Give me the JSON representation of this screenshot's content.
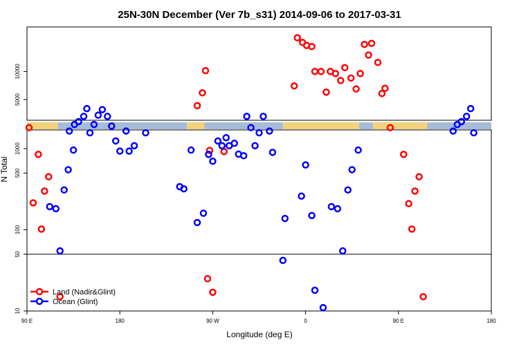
{
  "chart_data": {
    "type": "scatter",
    "title": "25N-30N December (Ver 7b_s31)   2014-09-06 to 2017-03-31",
    "xlabel": "Longitude (deg E)",
    "ylabel": "N Total",
    "x_ticks": [
      {
        "value": 90,
        "label": "90 E"
      },
      {
        "value": 180,
        "label": "180"
      },
      {
        "value": 270,
        "label": "90 W"
      },
      {
        "value": 360,
        "label": "0"
      },
      {
        "value": 450,
        "label": "90 E"
      },
      {
        "value": 540,
        "label": "180"
      }
    ],
    "y_upper_ticks": [
      {
        "value": 10000,
        "label": "10000"
      },
      {
        "value": 5000,
        "label": "5000"
      }
    ],
    "y_lower_ticks": [
      {
        "value": 1000,
        "label": "1000"
      },
      {
        "value": 500,
        "label": "500"
      },
      {
        "value": 100,
        "label": "100"
      },
      {
        "value": 50,
        "label": "50"
      },
      {
        "value": 10,
        "label": "10"
      }
    ],
    "threshold_line": 50,
    "colors": {
      "land": "#ff0000",
      "ocean": "#0000ff",
      "surface_land": "#f2d27a",
      "surface_ocean": "#a7bcd9"
    },
    "surface_strip": [
      {
        "from": 90,
        "to": 120,
        "kind": "land"
      },
      {
        "from": 120,
        "to": 245,
        "kind": "ocean"
      },
      {
        "from": 245,
        "to": 262,
        "kind": "land"
      },
      {
        "from": 262,
        "to": 338,
        "kind": "ocean"
      },
      {
        "from": 338,
        "to": 412,
        "kind": "land"
      },
      {
        "from": 412,
        "to": 425,
        "kind": "ocean"
      },
      {
        "from": 425,
        "to": 478,
        "kind": "land"
      },
      {
        "from": 478,
        "to": 540,
        "kind": "ocean"
      }
    ],
    "series": [
      {
        "name": "Land (Nadir&Glint)",
        "kind": "land",
        "upper": [
          [
            92,
            2500
          ],
          [
            255,
            4300
          ],
          [
            260,
            5900
          ],
          [
            263,
            10200
          ],
          [
            349,
            7000
          ],
          [
            352,
            23000
          ],
          [
            357,
            20500
          ],
          [
            361,
            19000
          ],
          [
            366,
            18500
          ],
          [
            369,
            10000
          ],
          [
            375,
            10000
          ],
          [
            380,
            6000
          ],
          [
            384,
            10000
          ],
          [
            389,
            9500
          ],
          [
            394,
            8000
          ],
          [
            398,
            11000
          ],
          [
            404,
            8500
          ],
          [
            409,
            6500
          ],
          [
            413,
            9500
          ],
          [
            417,
            19500
          ],
          [
            421,
            15000
          ],
          [
            424,
            20000
          ],
          [
            430,
            12500
          ],
          [
            434,
            5800
          ],
          [
            437,
            6600
          ],
          [
            442,
            2500
          ]
        ],
        "lower": [
          [
            96,
            215
          ],
          [
            101,
            850
          ],
          [
            104,
            102
          ],
          [
            107,
            300
          ],
          [
            111,
            450
          ],
          [
            122,
            15
          ],
          [
            265,
            25
          ],
          [
            267,
            950
          ],
          [
            270,
            17
          ],
          [
            281,
            920
          ],
          [
            455,
            850
          ],
          [
            460,
            210
          ],
          [
            463,
            102
          ],
          [
            466,
            300
          ],
          [
            470,
            450
          ],
          [
            474,
            15
          ]
        ]
      },
      {
        "name": "Ocean (Glint)",
        "kind": "ocean",
        "upper": [
          [
            131,
            2300
          ],
          [
            136,
            2700
          ],
          [
            140,
            2900
          ],
          [
            145,
            3300
          ],
          [
            148,
            4000
          ],
          [
            151,
            2200
          ],
          [
            155,
            2700
          ],
          [
            159,
            3400
          ],
          [
            163,
            3900
          ],
          [
            168,
            3300
          ],
          [
            172,
            2600
          ],
          [
            176,
            1800
          ],
          [
            180,
            1400
          ],
          [
            186,
            2300
          ],
          [
            189,
            1400
          ],
          [
            194,
            1600
          ],
          [
            205,
            2200
          ],
          [
            275,
            1800
          ],
          [
            279,
            1600
          ],
          [
            283,
            1950
          ],
          [
            286,
            1600
          ],
          [
            291,
            1700
          ],
          [
            295,
            1300
          ],
          [
            300,
            1250
          ],
          [
            303,
            3300
          ],
          [
            307,
            2500
          ],
          [
            311,
            1600
          ],
          [
            315,
            2200
          ],
          [
            319,
            3300
          ],
          [
            325,
            2300
          ],
          [
            503,
            2300
          ],
          [
            507,
            2700
          ],
          [
            511,
            2900
          ],
          [
            516,
            3300
          ],
          [
            520,
            4000
          ],
          [
            523,
            2200
          ]
        ],
        "lower": [
          [
            112,
            193
          ],
          [
            118,
            182
          ],
          [
            122,
            55
          ],
          [
            126,
            310
          ],
          [
            130,
            550
          ],
          [
            135,
            960
          ],
          [
            238,
            340
          ],
          [
            242,
            320
          ],
          [
            249,
            960
          ],
          [
            255,
            123
          ],
          [
            261,
            160
          ],
          [
            266,
            850
          ],
          [
            270,
            700
          ],
          [
            328,
            900
          ],
          [
            338,
            42
          ],
          [
            340,
            138
          ],
          [
            356,
            260
          ],
          [
            360,
            630
          ],
          [
            366,
            150
          ],
          [
            369,
            18
          ],
          [
            377,
            11
          ],
          [
            385,
            193
          ],
          [
            391,
            182
          ],
          [
            396,
            55
          ],
          [
            401,
            310
          ],
          [
            405,
            550
          ],
          [
            411,
            960
          ]
        ]
      }
    ]
  }
}
